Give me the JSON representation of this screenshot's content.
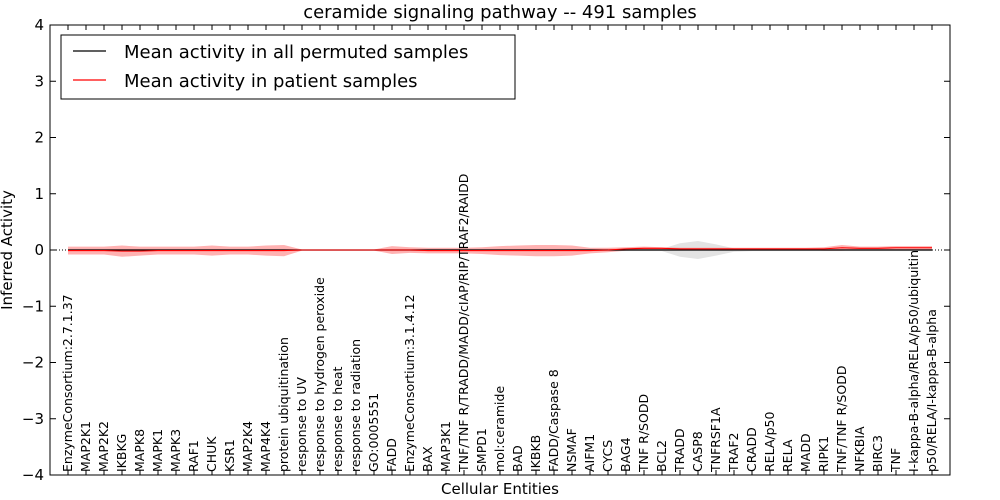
{
  "chart_data": {
    "type": "line",
    "title": "ceramide signaling pathway -- 491 samples",
    "xlabel": "Cellular Entities",
    "ylabel": "Inferred Activity",
    "ylim": [
      -4,
      4
    ],
    "yticks": [
      4,
      3,
      2,
      1,
      0,
      -1,
      -2,
      -3,
      -4
    ],
    "ytick_labels": [
      "4",
      "3",
      "2",
      "1",
      "0",
      "−1",
      "−2",
      "−3",
      "−4"
    ],
    "grid": false,
    "legend_position": "top-left",
    "reference_line": {
      "y": 0,
      "style": "dotted",
      "color": "#000000"
    },
    "categories": [
      "EnzymeConsortium:2.7.1.37",
      "MAP2K1",
      "MAP2K2",
      "IKBKG",
      "MAPK8",
      "MAPK1",
      "MAPK3",
      "RAF1",
      "CHUK",
      "KSR1",
      "MAP2K4",
      "MAP4K4",
      "protein ubiquitination",
      "response to UV",
      "response to hydrogen peroxide",
      "response to heat",
      "response to radiation",
      "GO:0005551",
      "FADD",
      "EnzymeConsortium:3.1.4.12",
      "BAX",
      "MAP3K1",
      "TNF/TNF R/TRADD/MADD/cIAP/RIP/TRAF2/RAIDD",
      "SMPD1",
      "mol:ceramide",
      "BAD",
      "IKBKB",
      "FADD/Caspase 8",
      "NSMAF",
      "AIFM1",
      "CYCS",
      "BAG4",
      "TNF R/SODD",
      "BCL2",
      "TRADD",
      "CASP8",
      "TNFRSF1A",
      "TRAF2",
      "CRADD",
      "RELA/p50",
      "RELA",
      "MADD",
      "RIPK1",
      "TNF/TNF R/SODD",
      "NFKBIA",
      "BIRC3",
      "TNF",
      "I-kappa-B-alpha/RELA/p50/ubiquitin",
      "p50/RELA/I-kappa-B-alpha"
    ],
    "series": [
      {
        "name": "Mean activity in all permuted samples",
        "color": "#000000",
        "values": [
          0,
          0,
          0,
          0,
          0,
          0,
          0,
          0,
          0,
          0,
          0,
          0,
          0,
          0,
          0,
          0,
          0,
          0,
          0,
          0,
          0,
          0,
          0,
          0,
          0,
          0,
          0,
          0,
          0,
          0,
          0,
          0,
          0,
          0,
          0,
          0,
          0,
          0,
          0,
          0,
          0,
          0,
          0,
          0,
          0,
          0,
          0,
          0,
          0
        ],
        "band": [
          0.02,
          0.02,
          0.02,
          0.02,
          0.02,
          0.02,
          0.02,
          0.02,
          0.02,
          0.02,
          0.02,
          0.02,
          0.02,
          0.01,
          0.01,
          0.01,
          0.01,
          0.01,
          0.02,
          0.02,
          0.02,
          0.02,
          0.02,
          0.02,
          0.02,
          0.02,
          0.02,
          0.02,
          0.02,
          0.02,
          0.02,
          0.02,
          0.02,
          0.02,
          0.12,
          0.16,
          0.1,
          0.03,
          0.02,
          0.02,
          0.02,
          0.02,
          0.02,
          0.02,
          0.02,
          0.02,
          0.02,
          0.02,
          0.02
        ]
      },
      {
        "name": "Mean activity in patient samples",
        "color": "#ff0000",
        "values": [
          -0.01,
          -0.01,
          -0.01,
          -0.02,
          -0.02,
          -0.01,
          -0.01,
          -0.01,
          -0.01,
          -0.01,
          -0.01,
          -0.01,
          -0.01,
          0,
          0,
          0,
          0,
          0,
          0,
          0,
          -0.01,
          -0.01,
          -0.01,
          -0.01,
          -0.01,
          -0.01,
          -0.01,
          -0.01,
          -0.01,
          -0.01,
          0,
          0.02,
          0.03,
          0.03,
          0.02,
          0.02,
          0.02,
          0.02,
          0.02,
          0.02,
          0.02,
          0.02,
          0.02,
          0.04,
          0.03,
          0.03,
          0.04,
          0.04,
          0.04
        ],
        "band": [
          0.07,
          0.07,
          0.07,
          0.1,
          0.08,
          0.07,
          0.07,
          0.07,
          0.09,
          0.07,
          0.07,
          0.09,
          0.1,
          0.01,
          0.01,
          0.01,
          0.01,
          0.01,
          0.07,
          0.05,
          0.05,
          0.05,
          0.05,
          0.06,
          0.08,
          0.09,
          0.1,
          0.1,
          0.09,
          0.05,
          0.04,
          0.03,
          0.03,
          0.02,
          0.02,
          0.02,
          0.02,
          0.02,
          0.02,
          0.02,
          0.02,
          0.02,
          0.03,
          0.05,
          0.03,
          0.03,
          0.03,
          0.03,
          0.03
        ]
      }
    ]
  }
}
